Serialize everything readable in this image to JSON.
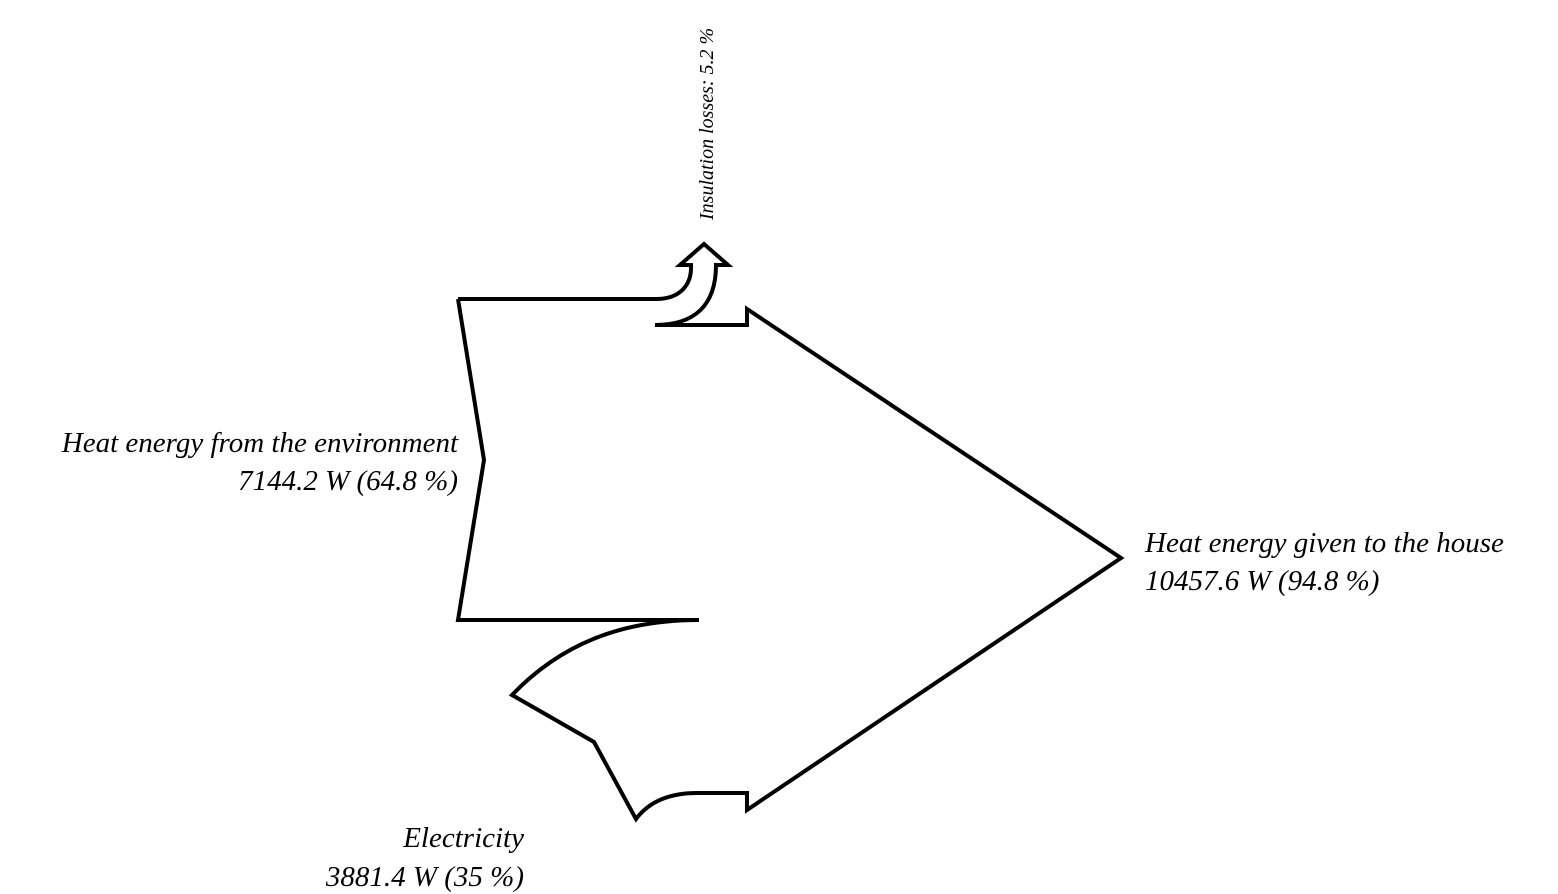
{
  "diagram": {
    "type": "sankey",
    "stroke_color": "#000000",
    "background": "#ffffff",
    "inputs": [
      {
        "id": "environment",
        "name": "Heat energy from the environment",
        "value_text": "7144.2 W (64.8 %)",
        "value_w": 7144.2,
        "percent": 64.8
      },
      {
        "id": "electricity",
        "name": "Electricity",
        "value_text": "3881.4 W (35 %)",
        "value_w": 3881.4,
        "percent": 35
      }
    ],
    "outputs": [
      {
        "id": "house",
        "name": "Heat energy given to the house",
        "value_text": "10457.6 W (94.8 %)",
        "value_w": 10457.6,
        "percent": 94.8
      },
      {
        "id": "losses",
        "label": "Insulation losses: 5.2 %",
        "percent": 5.2
      }
    ]
  }
}
